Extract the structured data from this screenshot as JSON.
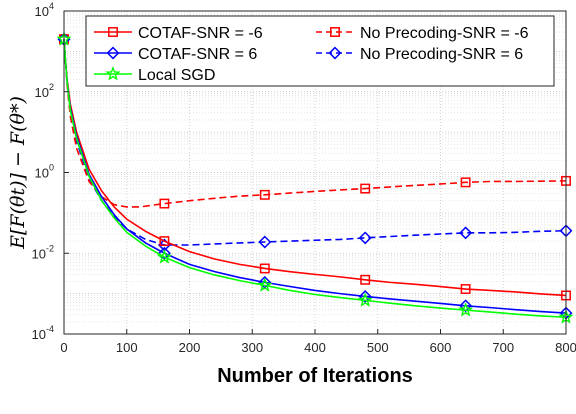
{
  "chart_data": {
    "type": "line",
    "xlabel": "Number of Iterations",
    "ylabel": "E[F(θt)] − F(θ*)",
    "xlim": [
      0,
      800
    ],
    "ylim_log10": [
      -4,
      4
    ],
    "yscale": "log",
    "grid": "on",
    "x_ticks": [
      "0",
      "100",
      "200",
      "300",
      "400",
      "500",
      "600",
      "700",
      "800"
    ],
    "y_ticks": [
      {
        "base": "10",
        "exp": "4"
      },
      {
        "base": "10",
        "exp": "2"
      },
      {
        "base": "10",
        "exp": "0"
      },
      {
        "base": "10",
        "exp": "-2"
      },
      {
        "base": "10",
        "exp": "-4"
      }
    ],
    "legend_position": "top",
    "series": [
      {
        "name": "COTAF-SNR = -6",
        "color": "#ff0000",
        "dash": "solid",
        "marker": "square",
        "x": [
          0,
          2,
          5,
          10,
          20,
          40,
          60,
          80,
          100,
          130,
          160,
          200,
          240,
          280,
          320,
          360,
          400,
          440,
          480,
          520,
          560,
          600,
          640,
          680,
          720,
          760,
          800
        ],
        "y": [
          2000,
          700,
          200,
          50,
          10,
          1.2,
          0.35,
          0.14,
          0.07,
          0.035,
          0.02,
          0.011,
          0.0072,
          0.0053,
          0.0042,
          0.0035,
          0.003,
          0.0026,
          0.0022,
          0.0019,
          0.0017,
          0.0015,
          0.0013,
          0.0012,
          0.0011,
          0.00098,
          0.0009
        ],
        "marker_x": [
          0,
          160,
          320,
          480,
          640,
          800
        ],
        "marker_y": [
          2000,
          0.02,
          0.0042,
          0.0022,
          0.0013,
          0.0009
        ]
      },
      {
        "name": "COTAF-SNR = 6",
        "color": "#0000ff",
        "dash": "solid",
        "marker": "diamond",
        "x": [
          0,
          2,
          5,
          10,
          20,
          40,
          60,
          80,
          100,
          130,
          160,
          200,
          240,
          280,
          320,
          360,
          400,
          440,
          480,
          520,
          560,
          600,
          640,
          680,
          720,
          760,
          800
        ],
        "y": [
          2000,
          700,
          180,
          40,
          8,
          0.9,
          0.25,
          0.09,
          0.04,
          0.018,
          0.01,
          0.0053,
          0.0035,
          0.0025,
          0.0019,
          0.0015,
          0.0012,
          0.001,
          0.00085,
          0.00074,
          0.00065,
          0.00057,
          0.0005,
          0.00045,
          0.0004,
          0.00036,
          0.00033
        ],
        "marker_x": [
          0,
          160,
          320,
          480,
          640,
          800
        ],
        "marker_y": [
          2000,
          0.01,
          0.0019,
          0.00085,
          0.0005,
          0.00033
        ]
      },
      {
        "name": "Local SGD",
        "color": "#00ff00",
        "dash": "solid",
        "marker": "star",
        "x": [
          0,
          2,
          5,
          10,
          20,
          40,
          60,
          80,
          100,
          130,
          160,
          200,
          240,
          280,
          320,
          360,
          400,
          440,
          480,
          520,
          560,
          600,
          640,
          680,
          720,
          760,
          800
        ],
        "y": [
          2000,
          700,
          170,
          35,
          7,
          0.8,
          0.2,
          0.075,
          0.033,
          0.015,
          0.008,
          0.0044,
          0.0029,
          0.0021,
          0.0016,
          0.0012,
          0.00095,
          0.0008,
          0.00068,
          0.00058,
          0.0005,
          0.00044,
          0.00039,
          0.00035,
          0.00031,
          0.00028,
          0.00026
        ],
        "marker_x": [
          0,
          160,
          320,
          480,
          640,
          800
        ],
        "marker_y": [
          2000,
          0.008,
          0.0016,
          0.00068,
          0.00039,
          0.00026
        ]
      },
      {
        "name": "No Precoding-SNR = -6",
        "color": "#ff0000",
        "dash": "dashed",
        "marker": "square",
        "x": [
          0,
          2,
          5,
          10,
          20,
          40,
          60,
          80,
          100,
          120,
          160,
          200,
          240,
          280,
          320,
          360,
          400,
          440,
          480,
          520,
          560,
          600,
          640,
          680,
          720,
          760,
          800
        ],
        "y": [
          2000,
          700,
          150,
          25,
          4,
          0.6,
          0.25,
          0.16,
          0.14,
          0.14,
          0.17,
          0.2,
          0.23,
          0.26,
          0.28,
          0.31,
          0.34,
          0.37,
          0.4,
          0.44,
          0.48,
          0.52,
          0.57,
          0.6,
          0.6,
          0.61,
          0.62
        ],
        "marker_x": [
          0,
          160,
          320,
          480,
          640,
          800
        ],
        "marker_y": [
          2000,
          0.17,
          0.28,
          0.4,
          0.57,
          0.62
        ]
      },
      {
        "name": "No Precoding-SNR = 6",
        "color": "#0000ff",
        "dash": "dashed",
        "marker": "diamond",
        "x": [
          0,
          2,
          5,
          10,
          20,
          40,
          60,
          80,
          100,
          130,
          160,
          200,
          240,
          280,
          320,
          360,
          400,
          440,
          480,
          520,
          560,
          600,
          640,
          680,
          720,
          760,
          800
        ],
        "y": [
          2000,
          700,
          160,
          30,
          6,
          0.7,
          0.2,
          0.08,
          0.04,
          0.022,
          0.016,
          0.016,
          0.017,
          0.018,
          0.019,
          0.02,
          0.021,
          0.022,
          0.024,
          0.026,
          0.028,
          0.03,
          0.032,
          0.032,
          0.033,
          0.035,
          0.036
        ],
        "marker_x": [
          0,
          160,
          320,
          480,
          640,
          800
        ],
        "marker_y": [
          2000,
          0.016,
          0.019,
          0.024,
          0.032,
          0.036
        ]
      }
    ],
    "legend_columns": [
      [
        "COTAF-SNR = -6",
        "COTAF-SNR = 6",
        "Local SGD"
      ],
      [
        "No Precoding-SNR = -6",
        "No Precoding-SNR = 6"
      ]
    ]
  }
}
